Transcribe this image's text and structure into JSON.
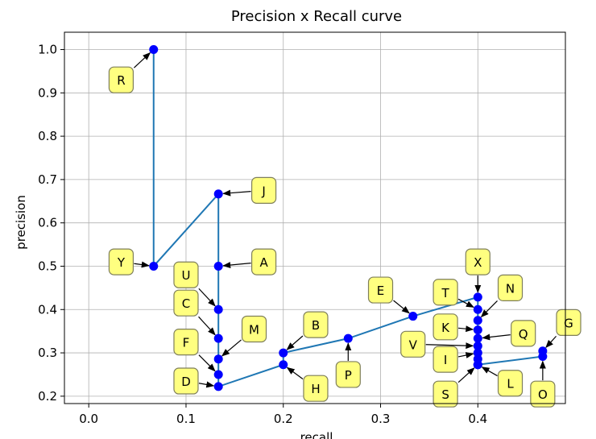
{
  "chart_data": {
    "type": "line",
    "title": "Precision x Recall curve",
    "xlabel": "recall",
    "ylabel": "precision",
    "xlim": [
      -0.025,
      0.49
    ],
    "ylim": [
      0.183,
      1.04
    ],
    "xticks": [
      0.0,
      0.1,
      0.2,
      0.3,
      0.4
    ],
    "yticks": [
      0.2,
      0.3,
      0.4,
      0.5,
      0.6,
      0.7,
      0.8,
      0.9,
      1.0
    ],
    "grid": true,
    "line_color": "#1f77b4",
    "marker_color": "#0000ff",
    "annotation_box_color": "#ffff80",
    "series": [
      {
        "x": [
          0.0667,
          0.0667,
          0.1333,
          0.1333,
          0.1333,
          0.1333,
          0.1333,
          0.1333,
          0.1333,
          0.2,
          0.2,
          0.2667,
          0.3333,
          0.4,
          0.4,
          0.4,
          0.4,
          0.4,
          0.4,
          0.4,
          0.4,
          0.4,
          0.4,
          0.4,
          0.4667,
          0.4667
        ],
        "y": [
          1.0,
          0.5,
          0.6667,
          0.5,
          0.4,
          0.3333,
          0.2857,
          0.25,
          0.2222,
          0.2727,
          0.3,
          0.3333,
          0.3846,
          0.4286,
          0.4,
          0.375,
          0.3529,
          0.3333,
          0.3158,
          0.3,
          0.2857,
          0.2727,
          0.2727,
          0.2727,
          0.2917,
          0.3043
        ]
      }
    ],
    "annotations": [
      {
        "label": "R",
        "x": 0.0667,
        "y": 1.0,
        "tx": 0.0333,
        "ty": 0.93
      },
      {
        "label": "Y",
        "x": 0.0667,
        "y": 0.5,
        "tx": 0.0333,
        "ty": 0.51
      },
      {
        "label": "J",
        "x": 0.1333,
        "y": 0.6667,
        "tx": 0.18,
        "ty": 0.675
      },
      {
        "label": "A",
        "x": 0.1333,
        "y": 0.5,
        "tx": 0.18,
        "ty": 0.51
      },
      {
        "label": "U",
        "x": 0.1333,
        "y": 0.4,
        "tx": 0.1,
        "ty": 0.48
      },
      {
        "label": "C",
        "x": 0.1333,
        "y": 0.3333,
        "tx": 0.1,
        "ty": 0.415
      },
      {
        "label": "M",
        "x": 0.1333,
        "y": 0.2857,
        "tx": 0.17,
        "ty": 0.355
      },
      {
        "label": "F",
        "x": 0.1333,
        "y": 0.25,
        "tx": 0.1,
        "ty": 0.325
      },
      {
        "label": "D",
        "x": 0.1333,
        "y": 0.2222,
        "tx": 0.1,
        "ty": 0.235
      },
      {
        "label": "B",
        "x": 0.2,
        "y": 0.3,
        "tx": 0.2333,
        "ty": 0.365
      },
      {
        "label": "H",
        "x": 0.2,
        "y": 0.2727,
        "tx": 0.2333,
        "ty": 0.218
      },
      {
        "label": "P",
        "x": 0.2667,
        "y": 0.3333,
        "tx": 0.2667,
        "ty": 0.25
      },
      {
        "label": "E",
        "x": 0.3333,
        "y": 0.3846,
        "tx": 0.3,
        "ty": 0.445
      },
      {
        "label": "X",
        "x": 0.4,
        "y": 0.4286,
        "tx": 0.4,
        "ty": 0.51
      },
      {
        "label": "T",
        "x": 0.4,
        "y": 0.4,
        "tx": 0.3667,
        "ty": 0.44
      },
      {
        "label": "N",
        "x": 0.4,
        "y": 0.375,
        "tx": 0.4333,
        "ty": 0.45
      },
      {
        "label": "K",
        "x": 0.4,
        "y": 0.3529,
        "tx": 0.3667,
        "ty": 0.36
      },
      {
        "label": "Q",
        "x": 0.4,
        "y": 0.3333,
        "tx": 0.4467,
        "ty": 0.345
      },
      {
        "label": "V",
        "x": 0.4,
        "y": 0.3158,
        "tx": 0.3333,
        "ty": 0.32
      },
      {
        "label": "I",
        "x": 0.4,
        "y": 0.3,
        "tx": 0.3667,
        "ty": 0.285
      },
      {
        "label": "L",
        "x": 0.4,
        "y": 0.2727,
        "tx": 0.4333,
        "ty": 0.23
      },
      {
        "label": "S",
        "x": 0.4,
        "y": 0.2727,
        "tx": 0.3667,
        "ty": 0.205
      },
      {
        "label": "G",
        "x": 0.4667,
        "y": 0.3043,
        "tx": 0.4933,
        "ty": 0.37
      },
      {
        "label": "O",
        "x": 0.4667,
        "y": 0.2917,
        "tx": 0.4667,
        "ty": 0.205
      }
    ]
  }
}
